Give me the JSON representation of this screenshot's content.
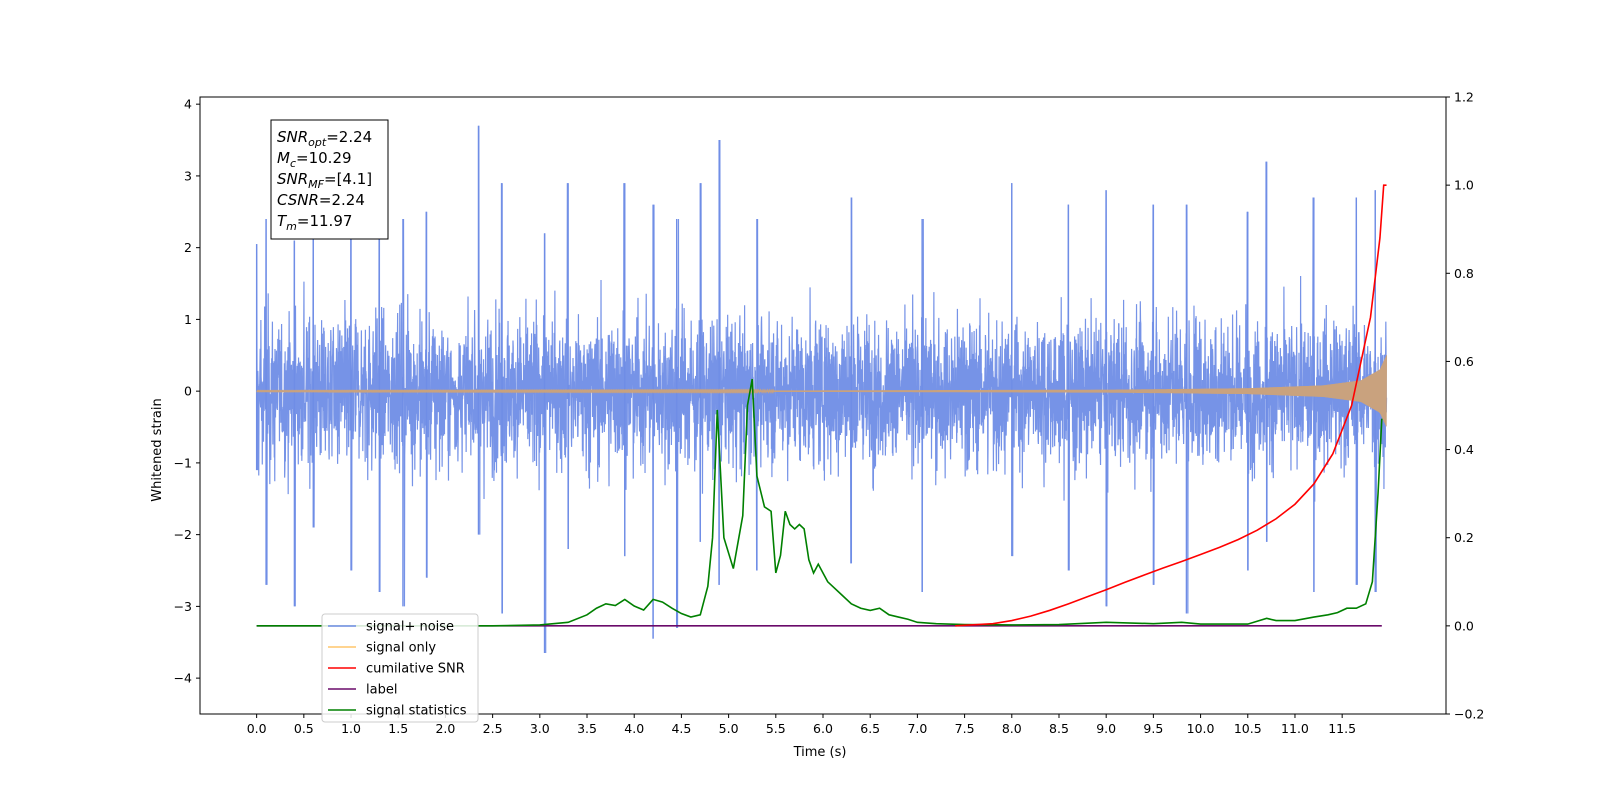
{
  "chart_data": {
    "type": "line",
    "title": "",
    "xlabel": "Time (s)",
    "ylabel": "Whitened strain",
    "y2label": "",
    "xlim": [
      -0.6,
      12.6
    ],
    "ylim": [
      -4.5,
      4.1
    ],
    "y2lim": [
      -0.2,
      1.2
    ],
    "xticks": [
      "0.0",
      "0.5",
      "1.0",
      "1.5",
      "2.0",
      "2.5",
      "3.0",
      "3.5",
      "4.0",
      "4.5",
      "5.0",
      "5.5",
      "6.0",
      "6.5",
      "7.0",
      "7.5",
      "8.0",
      "8.5",
      "9.0",
      "9.5",
      "10.0",
      "10.5",
      "11.0",
      "11.5"
    ],
    "yticks": [
      "4",
      "3",
      "2",
      "1",
      "0",
      "−1",
      "−2",
      "−3",
      "−4"
    ],
    "y2ticks": [
      "1.2",
      "1.0",
      "0.8",
      "0.6",
      "0.4",
      "0.2",
      "0.0",
      "−0.2"
    ],
    "grid": false,
    "legend_position": "lower-left",
    "legend": [
      {
        "label": "signal+ noise",
        "color": "#6f8de6"
      },
      {
        "label": "signal only",
        "color": "#ffc56b"
      },
      {
        "label": "cumilative SNR",
        "color": "#ff0000"
      },
      {
        "label": "label",
        "color": "#6a0a6a"
      },
      {
        "label": "signal statistics",
        "color": "#008000"
      }
    ],
    "annotation": {
      "lines": [
        {
          "sym": "SNR",
          "sub": "opt",
          "val": "=2.24"
        },
        {
          "sym": "M",
          "sub": "c",
          "val": "=10.29"
        },
        {
          "sym": "SNR",
          "sub": "MF",
          "val": "=[4.1]"
        },
        {
          "sym": "CSNR",
          "sub": "",
          "val": "=2.24"
        },
        {
          "sym": "T",
          "sub": "m",
          "val": "=11.97"
        }
      ]
    },
    "series": [
      {
        "name": "signal+ noise",
        "axis": "left",
        "color": "#6f8de6",
        "x_range": [
          0.0,
          11.97
        ],
        "envelope": [
          1.5,
          1.6
        ],
        "spikes": [
          [
            0.0,
            2.05,
            -1.1
          ],
          [
            0.1,
            2.4,
            -2.7
          ],
          [
            0.4,
            2.1,
            -3.0
          ],
          [
            0.6,
            2.3,
            -1.9
          ],
          [
            1.0,
            2.6,
            -2.5
          ],
          [
            1.3,
            2.2,
            -2.8
          ],
          [
            1.55,
            2.4,
            -3.0
          ],
          [
            1.8,
            2.5,
            -2.6
          ],
          [
            2.35,
            3.7,
            -2.0
          ],
          [
            2.6,
            2.9,
            -3.1
          ],
          [
            3.05,
            2.2,
            -3.65
          ],
          [
            3.3,
            2.9,
            -2.2
          ],
          [
            3.9,
            2.9,
            -2.3
          ],
          [
            4.2,
            2.6,
            -3.45
          ],
          [
            4.45,
            2.4,
            -3.3
          ],
          [
            4.7,
            2.9,
            -2.1
          ],
          [
            4.9,
            3.5,
            -2.7
          ],
          [
            5.3,
            2.4,
            -2.5
          ],
          [
            6.3,
            2.7,
            -2.4
          ],
          [
            7.05,
            2.4,
            -2.8
          ],
          [
            8.0,
            2.9,
            -2.3
          ],
          [
            8.6,
            2.6,
            -2.5
          ],
          [
            9.0,
            2.8,
            -3.0
          ],
          [
            9.5,
            2.6,
            -2.7
          ],
          [
            9.85,
            2.6,
            -3.1
          ],
          [
            10.5,
            2.5,
            -2.5
          ],
          [
            10.7,
            3.2,
            -2.1
          ],
          [
            11.2,
            2.7,
            -2.8
          ],
          [
            11.65,
            2.7,
            -2.7
          ],
          [
            11.85,
            2.8,
            -2.8
          ]
        ]
      },
      {
        "name": "signal only",
        "axis": "left",
        "color": "#ffc56b",
        "x_range": [
          0.0,
          11.97
        ],
        "amplitude": [
          [
            0.0,
            0.005
          ],
          [
            6.0,
            0.01
          ],
          [
            9.0,
            0.02
          ],
          [
            10.5,
            0.04
          ],
          [
            11.3,
            0.08
          ],
          [
            11.7,
            0.15
          ],
          [
            11.9,
            0.3
          ],
          [
            11.97,
            0.5
          ]
        ]
      },
      {
        "name": "cumilative SNR",
        "axis": "right",
        "color": "#ff0000",
        "x": [
          7.4,
          7.8,
          8.0,
          8.2,
          8.4,
          8.6,
          8.8,
          9.0,
          9.2,
          9.4,
          9.6,
          9.8,
          10.0,
          10.2,
          10.4,
          10.6,
          10.8,
          11.0,
          11.2,
          11.4,
          11.6,
          11.8,
          11.9,
          11.94,
          11.97
        ],
        "y": [
          0.0,
          0.005,
          0.012,
          0.022,
          0.035,
          0.05,
          0.066,
          0.082,
          0.099,
          0.115,
          0.131,
          0.146,
          0.162,
          0.178,
          0.196,
          0.217,
          0.243,
          0.276,
          0.322,
          0.39,
          0.5,
          0.7,
          0.88,
          1.0,
          1.0
        ]
      },
      {
        "name": "label",
        "axis": "right",
        "color": "#6a0a6a",
        "x": [
          0.0,
          11.92
        ],
        "y": [
          0.0,
          0.0
        ]
      },
      {
        "name": "signal statistics",
        "axis": "right",
        "color": "#008000",
        "x": [
          0.0,
          2.5,
          3.0,
          3.3,
          3.5,
          3.6,
          3.7,
          3.8,
          3.9,
          4.0,
          4.1,
          4.2,
          4.3,
          4.4,
          4.5,
          4.6,
          4.7,
          4.78,
          4.83,
          4.88,
          4.95,
          5.05,
          5.15,
          5.2,
          5.25,
          5.3,
          5.38,
          5.45,
          5.5,
          5.55,
          5.6,
          5.65,
          5.7,
          5.75,
          5.8,
          5.85,
          5.9,
          5.95,
          6.0,
          6.05,
          6.1,
          6.2,
          6.3,
          6.4,
          6.5,
          6.6,
          6.7,
          6.8,
          6.9,
          7.0,
          7.2,
          7.5,
          8.0,
          8.5,
          9.0,
          9.5,
          9.8,
          10.0,
          10.5,
          10.7,
          10.8,
          11.0,
          11.2,
          11.35,
          11.45,
          11.55,
          11.65,
          11.75,
          11.82,
          11.88,
          11.92
        ],
        "y": [
          0.0,
          0.0,
          0.002,
          0.008,
          0.025,
          0.04,
          0.05,
          0.046,
          0.06,
          0.045,
          0.036,
          0.06,
          0.054,
          0.04,
          0.028,
          0.02,
          0.025,
          0.09,
          0.2,
          0.49,
          0.2,
          0.13,
          0.25,
          0.5,
          0.56,
          0.34,
          0.27,
          0.26,
          0.12,
          0.16,
          0.26,
          0.23,
          0.22,
          0.23,
          0.22,
          0.15,
          0.12,
          0.14,
          0.12,
          0.1,
          0.09,
          0.07,
          0.05,
          0.04,
          0.035,
          0.04,
          0.025,
          0.02,
          0.015,
          0.008,
          0.005,
          0.003,
          0.002,
          0.003,
          0.008,
          0.005,
          0.008,
          0.004,
          0.004,
          0.017,
          0.012,
          0.012,
          0.02,
          0.025,
          0.03,
          0.04,
          0.04,
          0.05,
          0.1,
          0.3,
          0.47
        ]
      }
    ]
  }
}
